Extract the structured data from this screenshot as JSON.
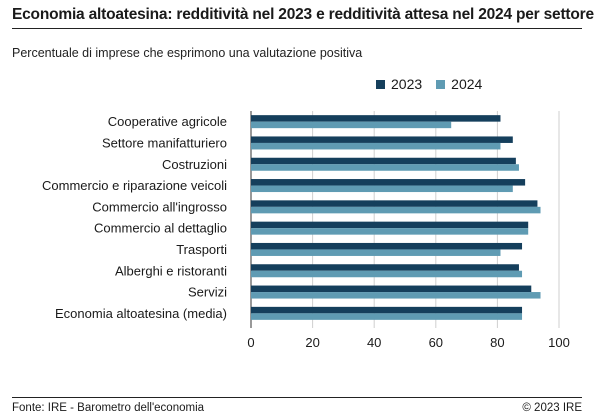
{
  "header": {
    "title": "Economia altoatesina: redditività nel 2023 e redditività attesa nel 2024 per settore",
    "subtitle": "Percentuale di imprese che esprimono una valutazione positiva"
  },
  "footer": {
    "source": "Fonte: IRE - Barometro dell'economia",
    "copyright": "© 2023 IRE"
  },
  "colors": {
    "series_2023": "#153f5c",
    "series_2024": "#5f9bb3",
    "grid": "#cfcfcf",
    "axis": "#333333"
  },
  "chart_data": {
    "type": "bar",
    "orientation": "horizontal",
    "title": "Economia altoatesina: redditività nel 2023 e redditività attesa nel 2024 per settore",
    "subtitle": "Percentuale di imprese che esprimono una valutazione positiva",
    "categories": [
      "Cooperative agricole",
      "Settore manifatturiero",
      "Costruzioni",
      "Commercio e riparazione veicoli",
      "Commercio all'ingrosso",
      "Commercio al dettaglio",
      "Trasporti",
      "Alberghi e ristoranti",
      "Servizi",
      "Economia altoatesina (media)"
    ],
    "series": [
      {
        "name": "2023",
        "values": [
          81,
          85,
          86,
          89,
          93,
          90,
          88,
          87,
          91,
          88
        ]
      },
      {
        "name": "2024",
        "values": [
          65,
          81,
          87,
          85,
          94,
          90,
          81,
          88,
          94,
          88
        ]
      }
    ],
    "xlim": [
      0,
      100
    ],
    "xticks": [
      "0",
      "20",
      "40",
      "60",
      "80",
      "100"
    ],
    "grid": true,
    "legend_position": "top-right"
  }
}
